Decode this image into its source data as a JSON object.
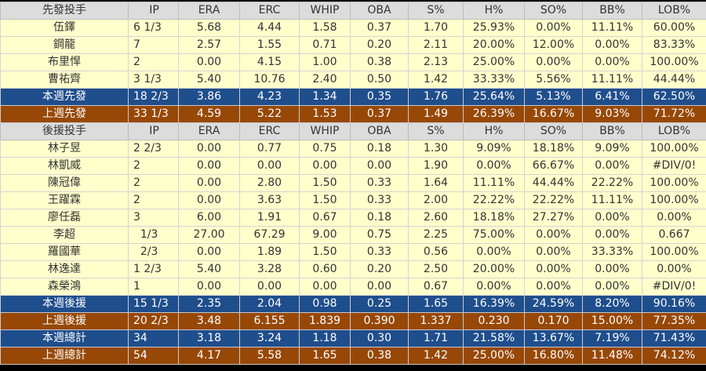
{
  "columns": [
    "IP",
    "ERA",
    "ERC",
    "WHIP",
    "OBA",
    "S%",
    "H%",
    "SO%",
    "BB%",
    "LOB%"
  ],
  "sections": [
    {
      "header": "先發投手",
      "rows": [
        [
          "伍鐸",
          "6 1/3",
          "5.68",
          "4.44",
          "1.58",
          "0.37",
          "1.70",
          "25.93%",
          "0.00%",
          "11.11%",
          "60.00%"
        ],
        [
          "鋼龍",
          "7",
          "2.57",
          "1.55",
          "0.71",
          "0.20",
          "2.11",
          "20.00%",
          "12.00%",
          "0.00%",
          "83.33%"
        ],
        [
          "布里悍",
          "2",
          "0.00",
          "4.15",
          "1.00",
          "0.38",
          "2.13",
          "25.00%",
          "0.00%",
          "0.00%",
          "100.00%"
        ],
        [
          "曹祐齊",
          "3 1/3",
          "5.40",
          "10.76",
          "2.40",
          "0.50",
          "1.42",
          "33.33%",
          "5.56%",
          "11.11%",
          "44.44%"
        ]
      ],
      "summaries": [
        {
          "style": "blue",
          "cells": [
            "本週先發",
            "18 2/3",
            "3.86",
            "4.23",
            "1.34",
            "0.35",
            "1.76",
            "25.64%",
            "5.13%",
            "6.41%",
            "62.50%"
          ]
        },
        {
          "style": "brown",
          "cells": [
            "上週先發",
            "33 1/3",
            "4.59",
            "5.22",
            "1.53",
            "0.37",
            "1.49",
            "26.39%",
            "16.67%",
            "9.03%",
            "71.72%"
          ]
        }
      ]
    },
    {
      "header": "後援投手",
      "rows": [
        [
          "林子昱",
          "2 2/3",
          "0.00",
          "0.77",
          "0.75",
          "0.18",
          "1.30",
          "9.09%",
          "18.18%",
          "9.09%",
          "100.00%"
        ],
        [
          "林凱威",
          "2",
          "0.00",
          "0.00",
          "0.00",
          "0.00",
          "1.90",
          "0.00%",
          "66.67%",
          "0.00%",
          "#DIV/0!"
        ],
        [
          "陳冠偉",
          "2",
          "0.00",
          "2.80",
          "1.50",
          "0.33",
          "1.64",
          "11.11%",
          "44.44%",
          "22.22%",
          "100.00%"
        ],
        [
          "王躍霖",
          "2",
          "0.00",
          "3.63",
          "1.50",
          "0.33",
          "2.00",
          "22.22%",
          "22.22%",
          "11.11%",
          "100.00%"
        ],
        [
          "廖任磊",
          "3",
          "6.00",
          "1.91",
          "0.67",
          "0.18",
          "2.60",
          "18.18%",
          "27.27%",
          "0.00%",
          "0.00%"
        ],
        [
          "李超",
          "  1/3",
          "27.00",
          "67.29",
          "9.00",
          "0.75",
          "2.25",
          "75.00%",
          "0.00%",
          "0.00%",
          "0.667"
        ],
        [
          "羅國華",
          "  2/3",
          "0.00",
          "1.89",
          "1.50",
          "0.33",
          "0.56",
          "0.00%",
          "0.00%",
          "33.33%",
          "100.00%"
        ],
        [
          "林逸達",
          "1 2/3",
          "5.40",
          "3.28",
          "0.60",
          "0.20",
          "2.50",
          "20.00%",
          "0.00%",
          "0.00%",
          "0.00%"
        ],
        [
          "森榮鴻",
          "1",
          "0.00",
          "0.00",
          "0.00",
          "0.00",
          "0.67",
          "0.00%",
          "0.00%",
          "0.00%",
          "#DIV/0!"
        ]
      ],
      "summaries": [
        {
          "style": "blue",
          "cells": [
            "本週後援",
            "15 1/3",
            "2.35",
            "2.04",
            "0.98",
            "0.25",
            "1.65",
            "16.39%",
            "24.59%",
            "8.20%",
            "90.16%"
          ]
        },
        {
          "style": "brown",
          "cells": [
            "上週後援",
            "20 2/3",
            "3.48",
            "6.155",
            "1.839",
            "0.390",
            "1.337",
            "0.230",
            "0.170",
            "15.00%",
            "77.35%"
          ]
        },
        {
          "style": "blue",
          "cells": [
            "本週總計",
            "34",
            "3.18",
            "3.24",
            "1.18",
            "0.30",
            "1.71",
            "21.58%",
            "13.67%",
            "7.19%",
            "71.43%"
          ]
        },
        {
          "style": "brown",
          "cells": [
            "上週總計",
            "54",
            "4.17",
            "5.58",
            "1.65",
            "0.38",
            "1.42",
            "25.00%",
            "16.80%",
            "11.48%",
            "74.12%"
          ]
        }
      ]
    }
  ]
}
